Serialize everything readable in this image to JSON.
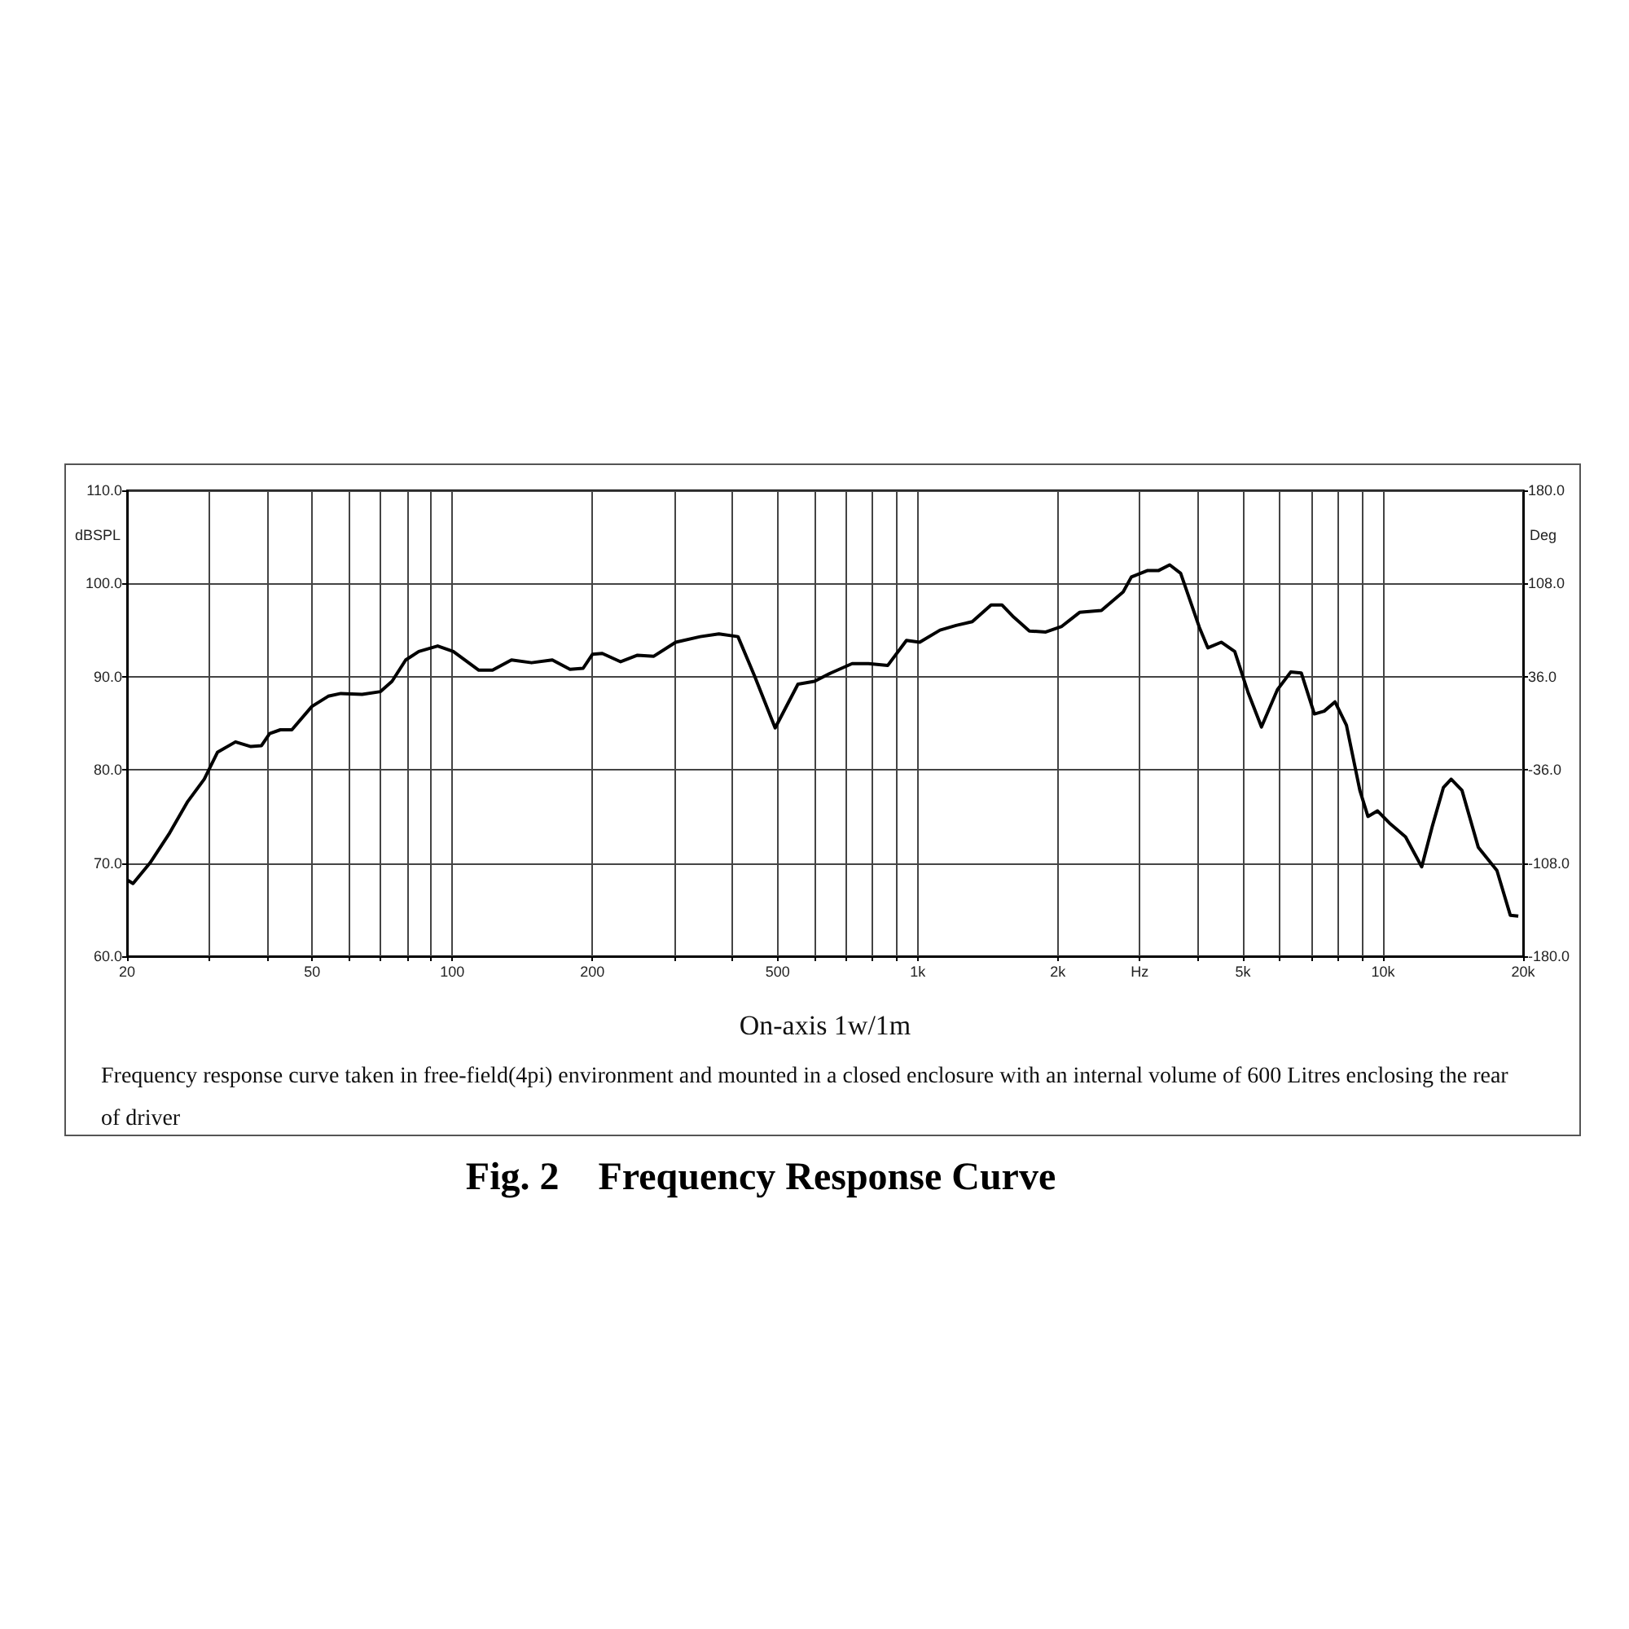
{
  "chart_data": {
    "type": "line",
    "title": "Fig. 2    Frequency Response Curve",
    "xlabel": "On-axis 1w/1m",
    "ylabel": "dBSPL",
    "y2label": "Deg",
    "annotations": [
      "Frequency response curve taken in free-field(4pi) environment and mounted in a closed enclosure with an internal volume of 600 Litres enclosing the rear of driver"
    ],
    "log": "x",
    "grid": true,
    "xlim": [
      20,
      20000
    ],
    "xticks": [
      20,
      {
        "value": 30,
        "label": null
      },
      {
        "value": 40,
        "label": null
      },
      50,
      {
        "value": 60,
        "label": null
      },
      {
        "value": 70,
        "label": null
      },
      {
        "value": 80,
        "label": null
      },
      {
        "value": 90,
        "label": null
      },
      100,
      200,
      {
        "value": 300,
        "label": null
      },
      {
        "value": 400,
        "label": null
      },
      500,
      {
        "value": 600,
        "label": null
      },
      {
        "value": 700,
        "label": null
      },
      {
        "value": 800,
        "label": null
      },
      {
        "value": 900,
        "label": null
      },
      {
        "value": 1000,
        "label": "1k"
      },
      {
        "value": 2000,
        "label": "2k"
      },
      {
        "value": 3000,
        "label": "Hz"
      },
      {
        "value": 4000,
        "label": null
      },
      {
        "value": 5000,
        "label": "5k"
      },
      {
        "value": 6000,
        "label": null
      },
      {
        "value": 7000,
        "label": null
      },
      {
        "value": 8000,
        "label": null
      },
      {
        "value": 9000,
        "label": null
      },
      {
        "value": 10000,
        "label": "10k"
      },
      {
        "value": 20000,
        "label": "20k"
      }
    ],
    "ylim": [
      60,
      110
    ],
    "yticks": [
      {
        "value": 60,
        "label": "60.0"
      },
      {
        "value": 70,
        "label": "70.0"
      },
      {
        "value": 80,
        "label": "80.0"
      },
      {
        "value": 90,
        "label": "90.0"
      },
      {
        "value": 100,
        "label": "100.0"
      },
      {
        "value": 110,
        "label": "110.0"
      }
    ],
    "y2lim": [
      -180,
      180
    ],
    "y2ticks": [
      {
        "value": -180,
        "label": "-180.0"
      },
      {
        "value": -108,
        "label": "-108.0"
      },
      {
        "value": -36,
        "label": "-36.0"
      },
      {
        "value": 36,
        "label": "36.0"
      },
      {
        "value": 108,
        "label": "108.0"
      },
      {
        "value": 180,
        "label": "180.0"
      }
    ],
    "series": [
      {
        "color": "#000000",
        "x": [
          20,
          20.6,
          22.4,
          24.6,
          27,
          29.3,
          31.3,
          34.2,
          36.9,
          38.9,
          40.5,
          42.7,
          45.2,
          49.9,
          54.1,
          57.6,
          64,
          70.1,
          74.2,
          79.4,
          84.7,
          93,
          100.5,
          114,
          122,
          134,
          148,
          164,
          179,
          191,
          200,
          210,
          230,
          250,
          271,
          302,
          341,
          374,
          411,
          446,
          494,
          553,
          600,
          651,
          723,
          784,
          862,
          946,
          1010,
          1117,
          1209,
          1310,
          1438,
          1517,
          1600,
          1738,
          1885,
          2040,
          2228,
          2482,
          2764,
          2879,
          3121,
          3296,
          3480,
          3674,
          4030,
          4202,
          4491,
          4801,
          5129,
          5480,
          5930,
          6332,
          6673,
          7120,
          7474,
          7885,
          8344,
          8917,
          9280,
          9732,
          10320,
          11180,
          12110,
          12770,
          13480,
          14010,
          14780,
          16020,
          17570,
          18770,
          19530
        ],
        "values": [
          68.2,
          67.8,
          70.0,
          73.1,
          76.6,
          79.0,
          81.9,
          83.0,
          82.5,
          82.6,
          83.9,
          84.3,
          84.3,
          86.8,
          87.9,
          88.2,
          88.1,
          88.4,
          89.5,
          91.8,
          92.7,
          93.3,
          92.7,
          90.7,
          90.7,
          91.8,
          91.5,
          91.8,
          90.8,
          90.9,
          92.4,
          92.5,
          91.6,
          92.3,
          92.2,
          93.7,
          94.3,
          94.6,
          94.3,
          90.1,
          84.5,
          89.2,
          89.5,
          90.4,
          91.4,
          91.4,
          91.2,
          93.9,
          93.7,
          95.0,
          95.5,
          95.9,
          97.7,
          97.7,
          96.5,
          94.9,
          94.8,
          95.4,
          96.9,
          97.1,
          99.1,
          100.7,
          101.4,
          101.4,
          102.0,
          101.1,
          95.3,
          93.1,
          93.7,
          92.7,
          88.3,
          84.6,
          88.6,
          90.5,
          90.4,
          86.0,
          86.3,
          87.3,
          84.8,
          77.8,
          75.0,
          75.6,
          74.3,
          72.8,
          69.6,
          74.0,
          78.1,
          79.0,
          77.8,
          71.7,
          69.2,
          64.4,
          64.3
        ]
      }
    ]
  }
}
